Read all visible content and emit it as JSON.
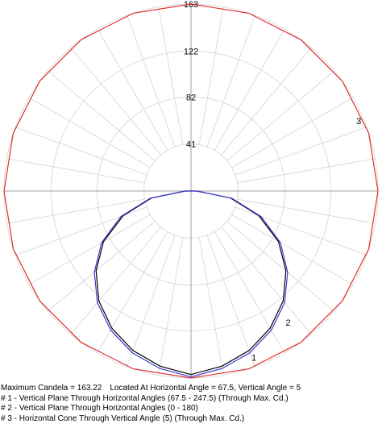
{
  "chart_data": {
    "type": "polar",
    "rings": [
      41,
      82,
      122,
      163
    ],
    "r_max": 163,
    "angle_step_deg": 10,
    "series": [
      {
        "id": "1",
        "label_text": "1",
        "color": "#000000",
        "values": [
          160,
          155,
          148,
          138,
          125,
          108,
          88,
          63,
          35,
          5
        ]
      },
      {
        "id": "2",
        "label_text": "2",
        "color": "#3a3ad0",
        "values": [
          162,
          157,
          150,
          140,
          127,
          110,
          90,
          65,
          36,
          5
        ]
      },
      {
        "id": "3",
        "label_text": "3",
        "color": "#e03030",
        "constant_value": 163,
        "points": 20
      }
    ]
  },
  "footer": {
    "maximum": "Maximum Candela = 163.22",
    "location": "Located At Horizontal Angle = 67.5, Vertical Angle = 5",
    "legend_1": "# 1 - Vertical Plane Through Horizontal Angles (67.5 - 247.5) (Through Max. Cd.)",
    "legend_2": "# 2 - Vertical Plane Through Horizontal Angles (0 - 180)",
    "legend_3": "# 3 - Horizontal Cone Through Vertical Angle (5) (Through Max. Cd.)"
  }
}
